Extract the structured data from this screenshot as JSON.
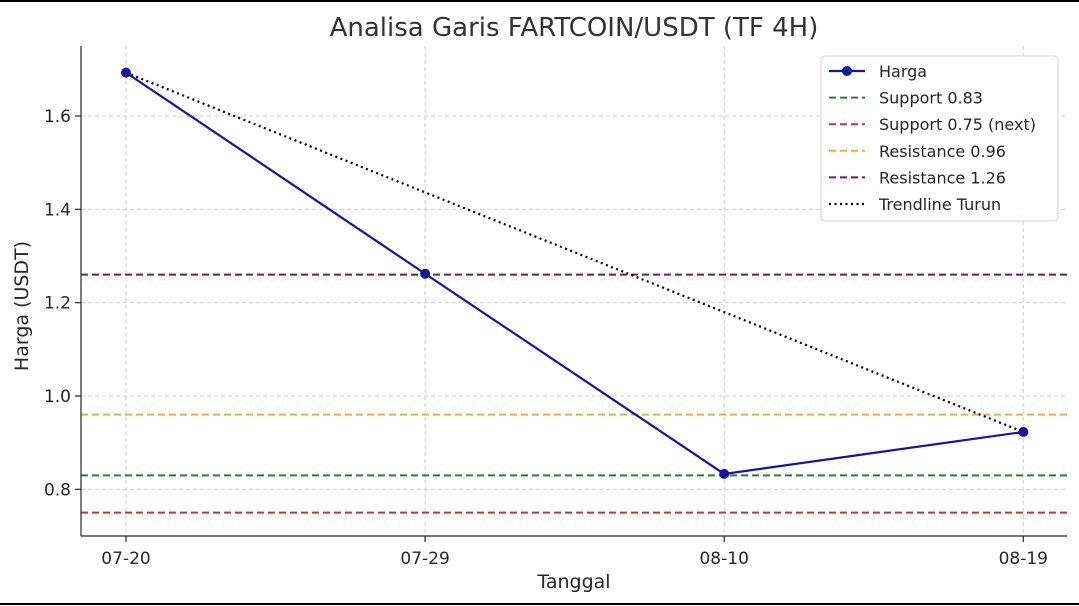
{
  "chart_data": {
    "type": "line",
    "title": "Analisa Garis FARTCOIN/USDT (TF 4H)",
    "xlabel": "Tanggal",
    "ylabel": "Harga (USDT)",
    "categories": [
      "07-20",
      "07-29",
      "08-10",
      "08-19"
    ],
    "yticks": [
      "0.8",
      "1.0",
      "1.2",
      "1.4",
      "1.6"
    ],
    "ylim": [
      0.7,
      1.75
    ],
    "grid": true,
    "legend_position": "top-right",
    "series": [
      {
        "name": "Harga",
        "values": [
          1.693,
          1.262,
          0.833,
          0.923
        ],
        "color": "#1515a5",
        "style": "line-marker"
      }
    ],
    "reference_lines": [
      {
        "name": "Support 0.83",
        "value": 0.83,
        "color": "#2e7d32",
        "style": "dashed"
      },
      {
        "name": "Support 0.75 (next)",
        "value": 0.75,
        "color": "#c0392b",
        "style": "dashed"
      },
      {
        "name": "Resistance 0.96",
        "value": 0.96,
        "color": "#f0ad3e",
        "style": "dashed"
      },
      {
        "name": "Resistance 1.26",
        "value": 1.26,
        "color": "#6a1b6a",
        "style": "dashed"
      }
    ],
    "trendline": {
      "name": "Trendline Turun",
      "start": 1.693,
      "end": 0.923,
      "color": "#000000",
      "style": "dotted"
    }
  }
}
